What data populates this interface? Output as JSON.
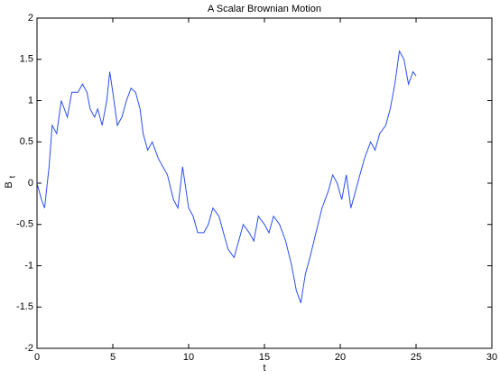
{
  "chart_data": {
    "type": "line",
    "title": "A Scalar Brownian Motion",
    "xlabel": "t",
    "ylabel": "B",
    "ylabel_subscript": "t",
    "x": [
      0,
      0.3,
      0.5,
      0.8,
      1.0,
      1.3,
      1.6,
      2.0,
      2.3,
      2.7,
      3.0,
      3.3,
      3.5,
      3.8,
      4.0,
      4.3,
      4.6,
      4.8,
      5.0,
      5.3,
      5.6,
      5.9,
      6.2,
      6.5,
      6.8,
      7.0,
      7.3,
      7.6,
      8.0,
      8.3,
      8.6,
      9.0,
      9.3,
      9.6,
      10.0,
      10.3,
      10.6,
      11.0,
      11.3,
      11.6,
      12.0,
      12.3,
      12.6,
      13.0,
      13.3,
      13.6,
      14.0,
      14.3,
      14.6,
      15.0,
      15.3,
      15.6,
      16.0,
      16.4,
      16.8,
      17.1,
      17.4,
      17.7,
      18.0,
      18.4,
      18.8,
      19.2,
      19.5,
      19.8,
      20.1,
      20.4,
      20.7,
      21.0,
      21.3,
      21.6,
      22.0,
      22.3,
      22.6,
      23.0,
      23.3,
      23.6,
      23.9,
      24.2,
      24.5,
      24.8,
      25.0
    ],
    "series": [
      {
        "name": "B",
        "color": "#2b4ef0",
        "values": [
          0,
          -0.2,
          -0.3,
          0.2,
          0.7,
          0.6,
          1.0,
          0.8,
          1.1,
          1.1,
          1.2,
          1.1,
          0.9,
          0.8,
          0.9,
          0.7,
          1.0,
          1.35,
          1.1,
          0.7,
          0.8,
          1.0,
          1.15,
          1.1,
          0.9,
          0.6,
          0.4,
          0.5,
          0.3,
          0.2,
          0.1,
          -0.2,
          -0.3,
          0.2,
          -0.3,
          -0.4,
          -0.6,
          -0.6,
          -0.5,
          -0.3,
          -0.4,
          -0.6,
          -0.8,
          -0.9,
          -0.7,
          -0.5,
          -0.6,
          -0.7,
          -0.4,
          -0.5,
          -0.6,
          -0.4,
          -0.5,
          -0.7,
          -1.0,
          -1.3,
          -1.45,
          -1.1,
          -0.9,
          -0.6,
          -0.3,
          -0.1,
          0.1,
          0.0,
          -0.2,
          0.1,
          -0.3,
          -0.1,
          0.1,
          0.3,
          0.5,
          0.4,
          0.6,
          0.7,
          0.9,
          1.2,
          1.6,
          1.5,
          1.2,
          1.35,
          1.3
        ]
      }
    ],
    "xlim": [
      0,
      30
    ],
    "xticks": [
      0,
      5,
      10,
      15,
      20,
      25,
      30
    ],
    "ylim": [
      -2,
      2
    ],
    "yticks": [
      -2,
      -1.5,
      -1,
      -0.5,
      0,
      0.5,
      1,
      1.5,
      2
    ]
  }
}
